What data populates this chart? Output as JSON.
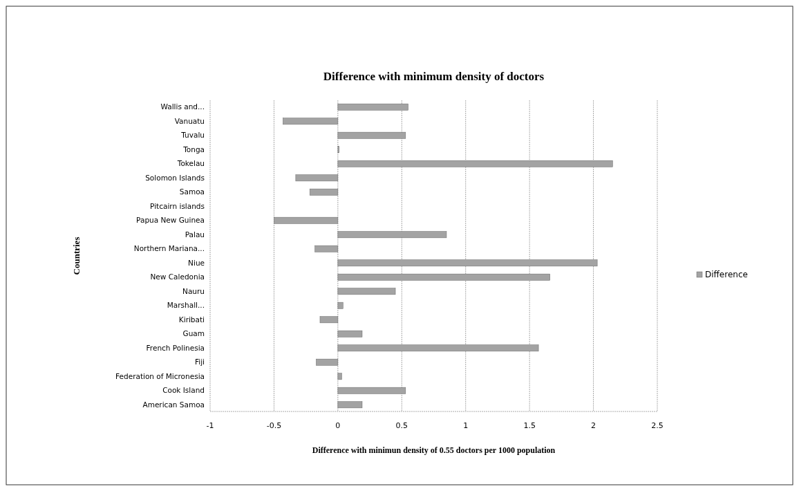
{
  "chart_data": {
    "type": "bar",
    "orientation": "horizontal",
    "title": "Difference with minimum density of doctors",
    "xlabel": "Difference with minimun density of 0.55 doctors per 1000 population",
    "ylabel": "Countries",
    "categories": [
      "Wallis and...",
      "Vanuatu",
      "Tuvalu",
      "Tonga",
      "Tokelau",
      "Solomon Islands",
      "Samoa",
      "Pitcairn islands",
      "Papua New Guinea",
      "Palau",
      "Northern Mariana...",
      "Niue",
      "New Caledonia",
      "Nauru",
      "Marshall...",
      "Kiribati",
      "Guam",
      "French Polinesia",
      "Fiji",
      "Federation of Micronesia",
      "Cook Island",
      "American Samoa"
    ],
    "series": [
      {
        "name": "Difference",
        "color": "#a3a3a3",
        "values": [
          0.55,
          -0.43,
          0.53,
          0.01,
          2.15,
          -0.33,
          -0.22,
          null,
          -0.5,
          0.85,
          -0.18,
          2.03,
          1.66,
          0.45,
          0.04,
          -0.14,
          0.19,
          1.57,
          -0.17,
          0.03,
          0.53,
          0.19
        ]
      }
    ],
    "xlim": [
      -1,
      2.5
    ],
    "xticks": [
      -1,
      -0.5,
      0,
      0.5,
      1,
      1.5,
      2,
      2.5
    ],
    "grid": "x",
    "legend": "right"
  }
}
